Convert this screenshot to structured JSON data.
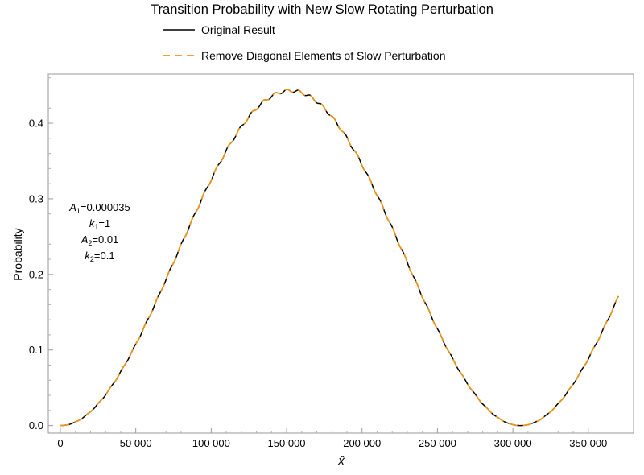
{
  "chart_data": {
    "type": "line",
    "title": "Transition Probability with New Slow Rotating Perturbation",
    "xlabel": "x̂",
    "ylabel": "Probability",
    "xlim": [
      -8000,
      380000
    ],
    "ylim": [
      -0.01,
      0.465
    ],
    "x_ticks": [
      0,
      50000,
      100000,
      150000,
      200000,
      250000,
      300000,
      350000
    ],
    "x_tick_labels": [
      "0",
      "50 000",
      "100 000",
      "150 000",
      "200 000",
      "250 000",
      "300 000",
      "350 000"
    ],
    "y_ticks": [
      0.0,
      0.1,
      0.2,
      0.3,
      0.4
    ],
    "y_tick_labels": [
      "0.0",
      "0.1",
      "0.2",
      "0.3",
      "0.4"
    ],
    "grid": false,
    "legend_position": "top",
    "model": {
      "amplitude": 0.443,
      "period": 305000,
      "ripple_amplitude": 0.002,
      "ripple_period": 7800,
      "x_start": 0,
      "x_end": 370000
    },
    "series": [
      {
        "name": "Original Result",
        "color": "#000000",
        "dash": "solid",
        "x": [
          0,
          25000,
          50000,
          75000,
          100000,
          125000,
          150000,
          175000,
          200000,
          225000,
          250000,
          275000,
          300000,
          325000,
          350000,
          370000
        ],
        "values": [
          0.0,
          0.029,
          0.109,
          0.216,
          0.322,
          0.402,
          0.441,
          0.43,
          0.372,
          0.276,
          0.167,
          0.068,
          0.008,
          0.006,
          0.086,
          0.17
        ]
      },
      {
        "name": "Remove Diagonal Elements of Slow Perturbation",
        "color": "#E8961E",
        "dash": "dashed",
        "x": [
          0,
          25000,
          50000,
          75000,
          100000,
          125000,
          150000,
          175000,
          200000,
          225000,
          250000,
          275000,
          300000,
          325000,
          350000,
          370000
        ],
        "values": [
          0.0,
          0.029,
          0.109,
          0.216,
          0.322,
          0.402,
          0.441,
          0.43,
          0.372,
          0.276,
          0.167,
          0.068,
          0.008,
          0.006,
          0.086,
          0.17
        ]
      }
    ],
    "annotation": {
      "lines": [
        {
          "symbol": "A",
          "subscript": "1",
          "value": "=0.000035"
        },
        {
          "symbol": "k",
          "subscript": "1",
          "value": "=1"
        },
        {
          "symbol": "A",
          "subscript": "2",
          "value": "=0.01"
        },
        {
          "symbol": "k",
          "subscript": "2",
          "value": "=0.1"
        }
      ]
    }
  }
}
